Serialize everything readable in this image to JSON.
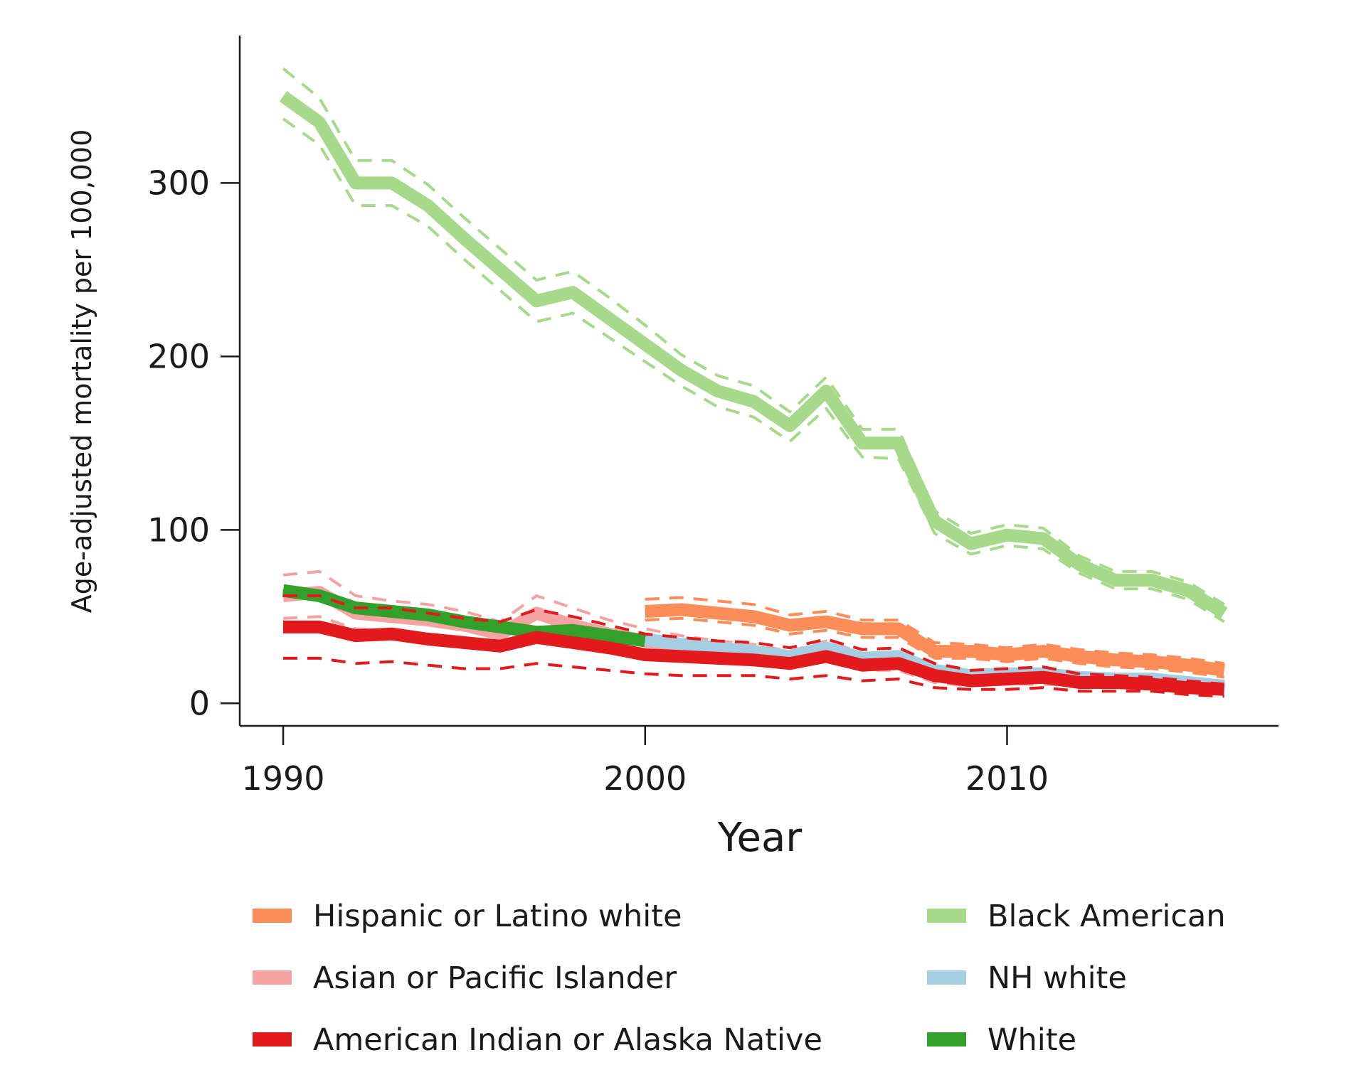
{
  "chart_data": {
    "type": "line",
    "xlabel": "Year",
    "ylabel": "Age-adjusted mortality per 100,000",
    "xlim": [
      1988.8,
      2017.5
    ],
    "ylim": [
      -13,
      385
    ],
    "xticks": [
      1990,
      2000,
      2010
    ],
    "yticks": [
      0,
      100,
      200,
      300
    ],
    "grid": false,
    "legend": "bottom, two columns",
    "series": [
      {
        "name": "Black American",
        "color": "#a6d98a",
        "x": [
          1990,
          1991,
          1992,
          1993,
          1994,
          1995,
          1996,
          1997,
          1998,
          1999,
          2000,
          2001,
          2002,
          2003,
          2004,
          2005,
          2006,
          2007,
          2008,
          2009,
          2010,
          2011,
          2012,
          2013,
          2014,
          2015,
          2016
        ],
        "y": [
          350,
          335,
          300,
          300,
          287,
          268,
          250,
          232,
          237,
          222,
          207,
          192,
          180,
          174,
          160,
          180,
          150,
          150,
          105,
          92,
          97,
          95,
          80,
          71,
          71,
          65,
          52
        ],
        "lower": [
          337,
          322,
          287,
          287,
          275,
          256,
          238,
          220,
          225,
          211,
          197,
          183,
          171,
          165,
          151,
          170,
          142,
          141,
          98,
          86,
          91,
          89,
          75,
          66,
          66,
          60,
          47
        ],
        "upper": [
          366,
          349,
          313,
          313,
          299,
          280,
          262,
          244,
          249,
          234,
          218,
          201,
          189,
          183,
          168,
          188,
          158,
          158,
          111,
          98,
          103,
          101,
          85,
          76,
          76,
          70,
          57
        ]
      },
      {
        "name": "Asian or Pacific Islander",
        "color": "#f4a3a3",
        "x": [
          1990,
          1991,
          1992,
          1993,
          1994,
          1995,
          1996,
          1997,
          1998,
          1999,
          2000,
          2001,
          2002,
          2003,
          2004,
          2005,
          2006,
          2007,
          2008,
          2009,
          2010,
          2011,
          2012,
          2013,
          2014,
          2015,
          2016
        ],
        "y": [
          62,
          64,
          52,
          50,
          48,
          45,
          40,
          52,
          45,
          40,
          36,
          33,
          30,
          28,
          25,
          30,
          24,
          24,
          16,
          14,
          15,
          15,
          13,
          12,
          12,
          10,
          9
        ],
        "lower": [
          49,
          50,
          43,
          42,
          40,
          38,
          34,
          43,
          37,
          33,
          30,
          27,
          25,
          23,
          20,
          24,
          19,
          19,
          12,
          10,
          11,
          11,
          10,
          9,
          9,
          7,
          6
        ],
        "upper": [
          74,
          76,
          62,
          59,
          57,
          53,
          47,
          62,
          55,
          48,
          43,
          39,
          36,
          34,
          30,
          36,
          29,
          29,
          20,
          18,
          19,
          19,
          16,
          15,
          15,
          13,
          12
        ]
      },
      {
        "name": "White",
        "color": "#33a02c",
        "x": [
          1990,
          1991,
          1992,
          1993,
          1994,
          1995,
          1996,
          1997,
          1998,
          1999,
          2000
        ],
        "y": [
          65,
          62,
          55,
          53,
          51,
          47,
          44,
          41,
          42,
          39,
          36
        ]
      },
      {
        "name": "NH white",
        "color": "#a6cee3",
        "x": [
          2000,
          2001,
          2002,
          2003,
          2004,
          2005,
          2006,
          2007,
          2008,
          2009,
          2010,
          2011,
          2012,
          2013,
          2014,
          2015,
          2016
        ],
        "y": [
          37,
          34,
          32,
          30,
          27,
          32,
          26,
          27,
          19,
          16,
          17,
          17,
          15,
          14,
          14,
          12,
          10
        ]
      },
      {
        "name": "Hispanic or Latino white",
        "color": "#fc8d59",
        "x": [
          2000,
          2001,
          2002,
          2003,
          2004,
          2005,
          2006,
          2007,
          2008,
          2009,
          2010,
          2011,
          2012,
          2013,
          2014,
          2015,
          2016
        ],
        "y": [
          53,
          54,
          52,
          50,
          45,
          47,
          43,
          43,
          30,
          30,
          28,
          30,
          27,
          25,
          24,
          22,
          19
        ],
        "lower": [
          48,
          49,
          47,
          45,
          40,
          42,
          38,
          38,
          26,
          26,
          24,
          26,
          23,
          21,
          20,
          18,
          15
        ],
        "upper": [
          60,
          61,
          59,
          57,
          51,
          53,
          48,
          48,
          35,
          34,
          32,
          34,
          31,
          29,
          28,
          26,
          23
        ]
      },
      {
        "name": "American Indian or Alaska Native",
        "color": "#e31a1c",
        "x": [
          1990,
          1991,
          1992,
          1993,
          1994,
          1995,
          1996,
          1997,
          1998,
          1999,
          2000,
          2001,
          2002,
          2003,
          2004,
          2005,
          2006,
          2007,
          2008,
          2009,
          2010,
          2011,
          2012,
          2013,
          2014,
          2015,
          2016
        ],
        "y": [
          44,
          44,
          39,
          40,
          37,
          35,
          33,
          38,
          35,
          32,
          28,
          27,
          26,
          25,
          23,
          27,
          22,
          23,
          16,
          13,
          14,
          15,
          12,
          12,
          11,
          9,
          8
        ],
        "lower": [
          26,
          26,
          23,
          24,
          22,
          20,
          20,
          23,
          21,
          19,
          17,
          16,
          16,
          16,
          14,
          16,
          13,
          14,
          9,
          8,
          8,
          9,
          7,
          7,
          7,
          5,
          4
        ],
        "upper": [
          62,
          62,
          55,
          55,
          52,
          49,
          47,
          54,
          50,
          45,
          40,
          38,
          36,
          35,
          32,
          37,
          31,
          32,
          23,
          19,
          20,
          21,
          17,
          16,
          15,
          13,
          11
        ]
      }
    ],
    "legend_items": [
      {
        "label": "Hispanic or Latino white",
        "color": "#fc8d59"
      },
      {
        "label": "Asian or Pacific Islander",
        "color": "#f4a3a3"
      },
      {
        "label": "American Indian or Alaska Native",
        "color": "#e31a1c"
      },
      {
        "label": "Black American",
        "color": "#a6d98a"
      },
      {
        "label": "NH white",
        "color": "#a6cee3"
      },
      {
        "label": "White",
        "color": "#33a02c"
      }
    ]
  }
}
